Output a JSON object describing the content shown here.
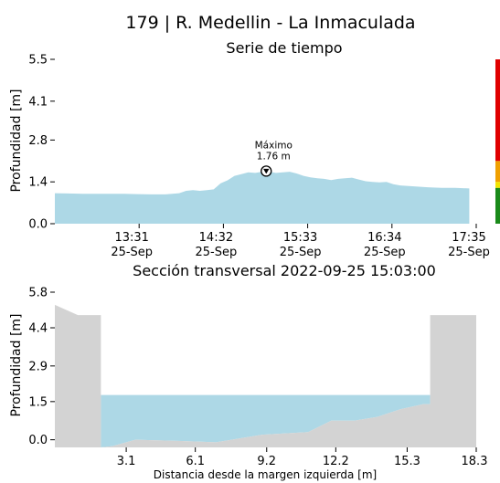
{
  "suptitle": "179 | R. Medellin - La Inmaculada",
  "colors": {
    "water": "#add8e6",
    "ground": "#d3d3d3",
    "threshold_red": "#e00000",
    "threshold_yellow": "#f2e600",
    "threshold_orange": "#f0a000",
    "threshold_green": "#1a8a1a"
  },
  "chart_data": [
    {
      "type": "area",
      "title": "Serie de tiempo",
      "ylabel": "Profundidad [m]",
      "xlabel": "",
      "ylim": [
        0,
        5.5
      ],
      "yticks": [
        "0.0",
        "1.4",
        "2.8",
        "4.1",
        "5.5"
      ],
      "xticks": [
        {
          "time": "13:31",
          "date": "25-Sep"
        },
        {
          "time": "14:32",
          "date": "25-Sep"
        },
        {
          "time": "15:33",
          "date": "25-Sep"
        },
        {
          "time": "16:34",
          "date": "25-Sep"
        },
        {
          "time": "17:35",
          "date": "25-Sep"
        }
      ],
      "series": [
        {
          "x": [
            "12:30",
            "12:40",
            "12:50",
            "13:00",
            "13:10",
            "13:20",
            "13:30",
            "13:40",
            "13:50",
            "14:00",
            "14:05",
            "14:10",
            "14:15",
            "14:20",
            "14:25",
            "14:30",
            "14:35",
            "14:40",
            "14:45",
            "14:50",
            "14:55",
            "15:00",
            "15:03",
            "15:10",
            "15:15",
            "15:20",
            "15:25",
            "15:30",
            "15:35",
            "15:40",
            "15:45",
            "15:50",
            "15:55",
            "16:00",
            "16:05",
            "16:10",
            "16:15",
            "16:20",
            "16:25",
            "16:30",
            "16:35",
            "16:40",
            "16:50",
            "17:00",
            "17:10",
            "17:20",
            "17:30"
          ],
          "values": [
            1.02,
            1.01,
            1.0,
            1.0,
            1.0,
            1.0,
            0.99,
            0.98,
            0.98,
            1.02,
            1.1,
            1.12,
            1.1,
            1.12,
            1.15,
            1.35,
            1.45,
            1.6,
            1.66,
            1.72,
            1.7,
            1.74,
            1.76,
            1.7,
            1.72,
            1.74,
            1.68,
            1.6,
            1.55,
            1.52,
            1.5,
            1.46,
            1.5,
            1.52,
            1.54,
            1.48,
            1.42,
            1.4,
            1.38,
            1.4,
            1.32,
            1.28,
            1.25,
            1.22,
            1.2,
            1.2,
            1.18
          ]
        }
      ],
      "annotation": {
        "label": "Máximo",
        "value_text": "1.76 m",
        "time": "15:03",
        "value": 1.76
      },
      "thresholds": [
        {
          "level": "green",
          "from": 0.0,
          "to": 1.2
        },
        {
          "level": "yellow",
          "from": 1.2,
          "to": 1.4
        },
        {
          "level": "orange",
          "from": 1.4,
          "to": 2.1
        },
        {
          "level": "red",
          "from": 2.1,
          "to": 5.5
        }
      ]
    },
    {
      "type": "area",
      "title": "Sección transversal 2022-09-25 15:03:00",
      "ylabel": "Profundidad [m]",
      "xlabel": "Distancia desde la margen izquierda [m]",
      "xlim": [
        0,
        18.3
      ],
      "ylim": [
        -0.3,
        5.8
      ],
      "yticks": [
        "0.0",
        "1.5",
        "2.9",
        "4.4",
        "5.8"
      ],
      "xticks": [
        "3.1",
        "6.1",
        "9.2",
        "12.2",
        "15.3",
        "18.3"
      ],
      "ground": {
        "x": [
          0.0,
          1.0,
          2.0,
          2.0,
          2.5,
          3.5,
          5.5,
          7.0,
          9.0,
          11.0,
          12.0,
          13.0,
          14.0,
          15.0,
          16.0,
          16.3,
          16.3,
          18.3
        ],
        "y": [
          5.3,
          4.9,
          4.9,
          -0.3,
          -0.25,
          0.0,
          -0.05,
          -0.1,
          0.2,
          0.3,
          0.75,
          0.75,
          0.9,
          1.2,
          1.4,
          1.4,
          4.9,
          4.9
        ]
      },
      "water_level": 1.76
    }
  ]
}
